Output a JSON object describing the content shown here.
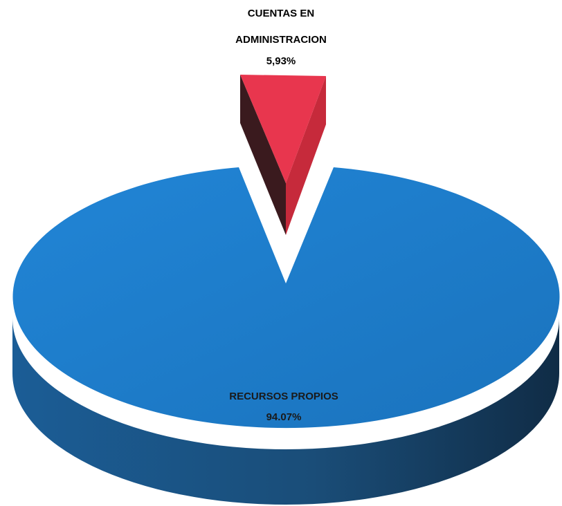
{
  "chart_data": {
    "type": "pie",
    "title": "",
    "slices": [
      {
        "label_lines": [
          "CUENTAS EN",
          "ADMINISTRACION"
        ],
        "value_label": "5,93%",
        "value": 5.93,
        "color": "#e8364e",
        "exploded": true
      },
      {
        "label_lines": [
          "RECURSOS PROPIOS"
        ],
        "value_label": "94.07%",
        "value": 94.07,
        "color": "#1f7bc9",
        "exploded": false
      }
    ],
    "style": "3d-exploded"
  }
}
